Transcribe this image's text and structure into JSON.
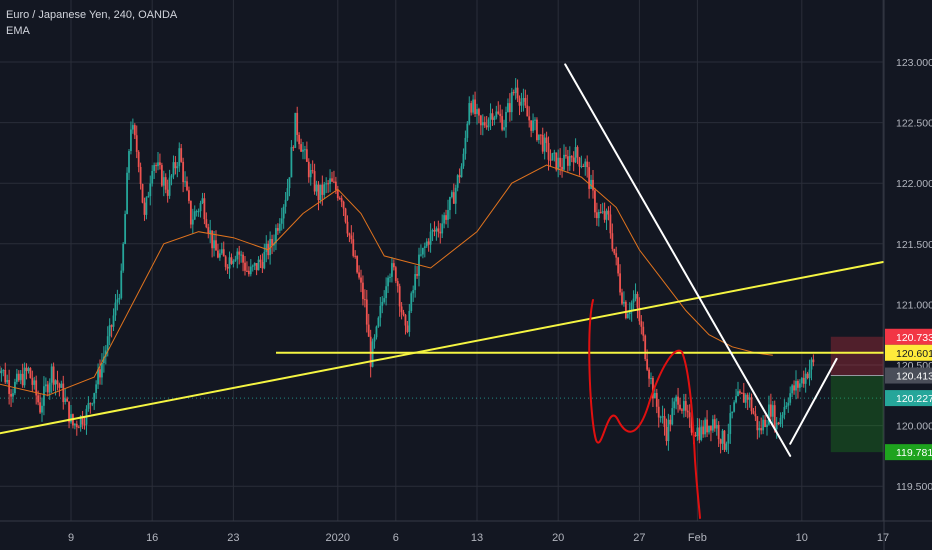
{
  "header": {
    "title": "Euro / Japanese Yen, 240, OANDA",
    "indicator": "EMA"
  },
  "colors": {
    "background": "#131722",
    "grid": "#2a2e39",
    "up": "#26a69a",
    "down": "#ef5350",
    "ema": "#e0731e",
    "trendline": "#f5f542",
    "drawing_white": "#ffffff",
    "projection": "#e01010",
    "text": "#b2b5be"
  },
  "chart_data": {
    "type": "candlestick",
    "symbol": "EURJPY",
    "timeframe": "240",
    "broker": "OANDA",
    "ylim": [
      119.1,
      123.1
    ],
    "y_ticks": [
      "123.000",
      "122.500",
      "122.000",
      "121.500",
      "121.000",
      "120.500",
      "120.000",
      "119.500"
    ],
    "x_ticks": [
      "9",
      "16",
      "23",
      "2020",
      "6",
      "13",
      "20",
      "27",
      "Feb",
      "10",
      "17"
    ],
    "x_tick_positions_day": [
      9,
      16,
      23,
      32,
      37,
      44,
      51,
      58,
      63,
      72,
      79
    ],
    "first_day": 2.5,
    "last_data_day": 61,
    "price_labels": [
      {
        "value": 120.733,
        "text": "120.733",
        "bg": "#f23645",
        "fg": "#ffffff"
      },
      {
        "value": 120.601,
        "text": "120.601",
        "bg": "#ffeb3b",
        "fg": "#131722"
      },
      {
        "value": 120.413,
        "text": "120.413",
        "bg": "#4a4e59",
        "fg": "#ffffff"
      },
      {
        "value": 120.227,
        "text": "120.227",
        "bg": "#26a69a",
        "fg": "#ffffff"
      },
      {
        "value": 119.781,
        "text": "119.781",
        "bg": "#1ea31e",
        "fg": "#ffffff"
      }
    ],
    "close_guide": 120.227,
    "anchors": [
      [
        2.5,
        120.6
      ],
      [
        4,
        120.3
      ],
      [
        5.5,
        120.45
      ],
      [
        6.5,
        120.15
      ],
      [
        7.5,
        120.45
      ],
      [
        8.5,
        120.25
      ],
      [
        9.3,
        120.0
      ],
      [
        10.5,
        120.1
      ],
      [
        11.5,
        120.4
      ],
      [
        12.5,
        120.75
      ],
      [
        13.5,
        121.2
      ],
      [
        14.3,
        122.5
      ],
      [
        15,
        122.2
      ],
      [
        15.5,
        121.7
      ],
      [
        16.2,
        122.2
      ],
      [
        17.5,
        121.95
      ],
      [
        18.5,
        122.25
      ],
      [
        19.5,
        121.7
      ],
      [
        20.5,
        121.85
      ],
      [
        21.5,
        121.45
      ],
      [
        22.5,
        121.35
      ],
      [
        23.5,
        121.45
      ],
      [
        24.5,
        121.25
      ],
      [
        25.5,
        121.35
      ],
      [
        26.5,
        121.5
      ],
      [
        27.8,
        121.95
      ],
      [
        28.5,
        122.5
      ],
      [
        29.5,
        122.15
      ],
      [
        30.5,
        121.9
      ],
      [
        31.5,
        122.0
      ],
      [
        32.5,
        121.9
      ],
      [
        33.5,
        121.4
      ],
      [
        34.5,
        121.0
      ],
      [
        35,
        120.55
      ],
      [
        35.5,
        120.75
      ],
      [
        36.5,
        121.3
      ],
      [
        37.2,
        121.25
      ],
      [
        38,
        120.75
      ],
      [
        39,
        121.3
      ],
      [
        40,
        121.55
      ],
      [
        41,
        121.65
      ],
      [
        42,
        121.85
      ],
      [
        43,
        122.2
      ],
      [
        43.5,
        122.7
      ],
      [
        44.5,
        122.45
      ],
      [
        45.5,
        122.6
      ],
      [
        46.5,
        122.5
      ],
      [
        47.5,
        122.8
      ],
      [
        48.5,
        122.55
      ],
      [
        49.5,
        122.4
      ],
      [
        50.5,
        122.2
      ],
      [
        51.5,
        122.15
      ],
      [
        52.5,
        122.25
      ],
      [
        53.5,
        122.15
      ],
      [
        54.5,
        121.75
      ],
      [
        55.5,
        121.7
      ],
      [
        56.5,
        121.15
      ],
      [
        57,
        120.95
      ],
      [
        57.8,
        121.05
      ],
      [
        58.5,
        120.7
      ],
      [
        59.5,
        120.2
      ],
      [
        60.5,
        119.95
      ],
      [
        61.5,
        120.25
      ],
      [
        62.5,
        120.0
      ],
      [
        63.5,
        119.95
      ],
      [
        64.5,
        120.05
      ],
      [
        65.5,
        119.85
      ],
      [
        66.5,
        120.2
      ],
      [
        67.5,
        120.25
      ],
      [
        68.5,
        119.95
      ],
      [
        69.5,
        120.15
      ],
      [
        70,
        120.0
      ],
      [
        71,
        120.25
      ],
      [
        72,
        120.35
      ],
      [
        73,
        120.5
      ]
    ],
    "ema_points": [
      [
        2.5,
        120.35
      ],
      [
        7,
        120.25
      ],
      [
        11,
        120.4
      ],
      [
        14,
        120.95
      ],
      [
        17,
        121.5
      ],
      [
        20,
        121.6
      ],
      [
        23,
        121.55
      ],
      [
        26,
        121.45
      ],
      [
        29,
        121.75
      ],
      [
        32,
        121.95
      ],
      [
        34,
        121.75
      ],
      [
        36,
        121.4
      ],
      [
        40,
        121.3
      ],
      [
        44,
        121.6
      ],
      [
        47,
        122.0
      ],
      [
        50,
        122.15
      ],
      [
        53,
        122.05
      ],
      [
        56,
        121.8
      ],
      [
        58,
        121.45
      ],
      [
        60,
        121.2
      ],
      [
        62,
        120.95
      ],
      [
        64,
        120.75
      ],
      [
        66,
        120.65
      ],
      [
        68,
        120.6
      ],
      [
        69.5,
        120.58
      ]
    ],
    "drawings": {
      "trendline": [
        [
          2.5,
          119.93
        ],
        [
          79,
          121.35
        ]
      ],
      "horizontal_line": [
        [
          37,
          120.601
        ],
        [
          90,
          120.601
        ]
      ],
      "white_down": [
        [
          51.6,
          122.98
        ],
        [
          71.0,
          119.75
        ]
      ],
      "white_up": [
        [
          71.0,
          119.85
        ],
        [
          75.0,
          120.55
        ]
      ],
      "projection": [
        [
          71.5,
          120.1
        ],
        [
          72.5,
          120.35
        ],
        [
          73.5,
          120.5
        ],
        [
          74.2,
          120.4
        ],
        [
          74.8,
          120.0
        ],
        [
          75.3,
          119.7
        ],
        [
          75.8,
          119.25
        ]
      ],
      "short_position": {
        "x_range": [
          74.5,
          84
        ],
        "entry": 120.413,
        "stop": 120.733,
        "target": 119.781
      }
    }
  }
}
